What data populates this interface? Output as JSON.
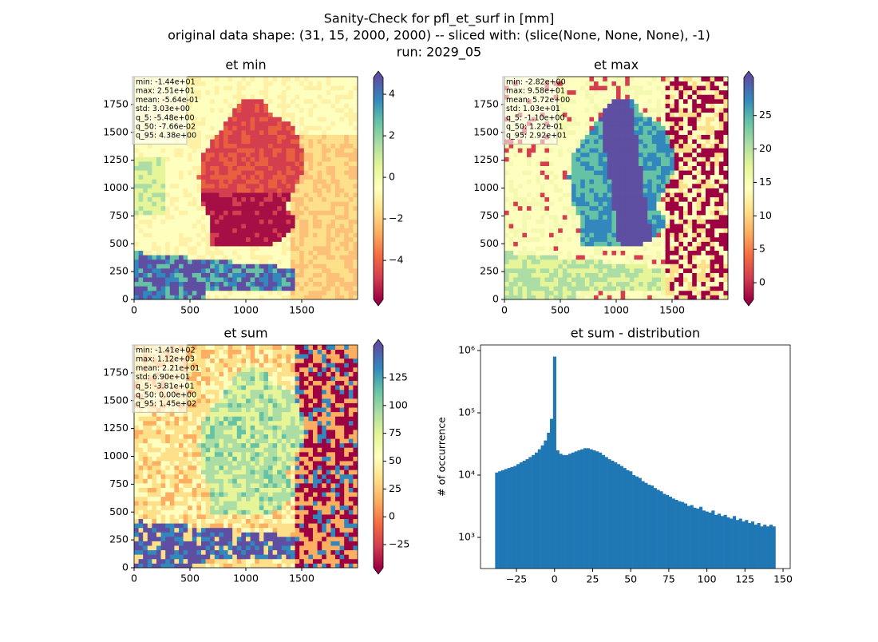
{
  "title_lines": [
    "Sanity-Check for pfl_et_surf in [mm]",
    "original data shape: (31, 15, 2000, 2000) -- sliced with: (slice(None, None, None), -1)",
    "run: 2029_05"
  ],
  "chart_data": [
    {
      "type": "heatmap",
      "title": "et min",
      "cmap": "Spectral",
      "xlim": [
        0,
        2000
      ],
      "ylim": [
        0,
        2000
      ],
      "xticks": [
        0,
        500,
        1000,
        1500
      ],
      "yticks": [
        0,
        250,
        500,
        750,
        1000,
        1250,
        1500,
        1750
      ],
      "clim": [
        -5.88,
        4.81
      ],
      "cticks": [
        {
          "value": -4,
          "label": "−4"
        },
        {
          "value": -2,
          "label": "−2"
        },
        0,
        2,
        4
      ],
      "stats": [
        "min: -1.44e+01",
        "max: 2.51e+01",
        "mean: -5.64e-01",
        "std: 3.03e+00",
        "q_5: -5.48e+00",
        "q_50: -7.66e-02",
        "q_95: 4.38e+00"
      ]
    },
    {
      "type": "heatmap",
      "title": "et max",
      "cmap": "Spectral",
      "xlim": [
        0,
        2000
      ],
      "ylim": [
        0,
        2000
      ],
      "xticks": [
        0,
        500,
        1000,
        1500
      ],
      "yticks": [
        0,
        250,
        500,
        750,
        1000,
        1250,
        1500,
        1750
      ],
      "clim": [
        -2.5,
        30.7
      ],
      "cticks": [
        0,
        5,
        10,
        15,
        20,
        25
      ],
      "stats": [
        "min: -2.82e+00",
        "max: 9.58e+01",
        "mean: 5.72e+00",
        "std: 1.03e+01",
        "q_5: -1.10e+00",
        "q_50: 1.22e-01",
        "q_95: 2.92e+01"
      ]
    },
    {
      "type": "heatmap",
      "title": "et sum",
      "cmap": "Spectral",
      "xlim": [
        0,
        2000
      ],
      "ylim": [
        0,
        2000
      ],
      "xticks": [
        0,
        500,
        1000,
        1500
      ],
      "yticks": [
        0,
        250,
        500,
        750,
        1000,
        1250,
        1500,
        1750
      ],
      "clim": [
        -45.8,
        153.7
      ],
      "cticks": [
        {
          "value": -25,
          "label": "−25"
        },
        0,
        25,
        50,
        75,
        100,
        125
      ],
      "stats": [
        "min: -1.41e+02",
        "max: 1.12e+03",
        "mean: 2.21e+01",
        "std: 6.90e+01",
        "q_5: -3.81e+01",
        "q_50: 0.00e+00",
        "q_95: 1.45e+02"
      ]
    },
    {
      "type": "histogram",
      "title": "et sum - distribution",
      "ylabel": "# of occurrence",
      "color": "#1f77b4",
      "log_y": true,
      "xlim": [
        -48.6,
        154.7
      ],
      "ylim": [
        316,
        1230000
      ],
      "xticks": [
        {
          "value": -25,
          "label": "−25"
        },
        0,
        25,
        50,
        75,
        100,
        125,
        150
      ],
      "yticks": [
        {
          "value": 1000,
          "label": "10³"
        },
        {
          "value": 10000,
          "label": "10⁴"
        },
        {
          "value": 100000,
          "label": "10⁵"
        },
        {
          "value": 1000000,
          "label": "10⁶"
        }
      ],
      "bins": [
        -39,
        -37,
        -35,
        -33,
        -31,
        -29,
        -27,
        -25,
        -23,
        -21,
        -19,
        -17,
        -15,
        -13,
        -11,
        -9,
        -7,
        -5,
        -3,
        -1,
        1,
        3,
        5,
        7,
        9,
        11,
        13,
        15,
        17,
        19,
        21,
        23,
        25,
        27,
        29,
        31,
        33,
        35,
        37,
        39,
        41,
        43,
        45,
        47,
        49,
        51,
        53,
        55,
        57,
        59,
        61,
        63,
        65,
        67,
        69,
        71,
        73,
        75,
        77,
        79,
        81,
        83,
        85,
        87,
        89,
        91,
        93,
        95,
        97,
        99,
        101,
        103,
        105,
        107,
        109,
        111,
        113,
        115,
        117,
        119,
        121,
        123,
        125,
        127,
        129,
        131,
        133,
        135,
        137,
        139,
        141,
        143,
        145
      ],
      "counts": [
        11000,
        11500,
        12000,
        12500,
        13000,
        13500,
        14000,
        15000,
        16000,
        17000,
        18000,
        19500,
        21000,
        23000,
        26000,
        30000,
        36000,
        48000,
        80000,
        800000,
        25000,
        22000,
        21000,
        21000,
        22000,
        23000,
        24000,
        25000,
        26000,
        27000,
        27000,
        26000,
        25000,
        24000,
        23000,
        21000,
        19500,
        18000,
        17000,
        16000,
        15000,
        14000,
        13000,
        12000,
        11500,
        10000,
        9500,
        9000,
        8000,
        7500,
        7000,
        6800,
        6200,
        5800,
        5500,
        5000,
        4800,
        4500,
        4200,
        4000,
        3800,
        3700,
        3500,
        3200,
        3300,
        3000,
        2900,
        3100,
        2700,
        2600,
        2500,
        2700,
        2300,
        2400,
        2200,
        2300,
        2100,
        2000,
        2200,
        1900,
        2000,
        1800,
        1900,
        1700,
        1800,
        1600,
        1700,
        1500,
        1600,
        1500,
        1600,
        1500
      ]
    }
  ]
}
